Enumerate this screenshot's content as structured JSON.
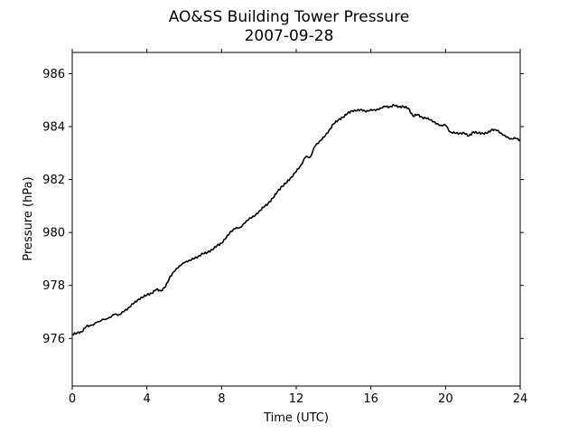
{
  "chart_data": {
    "type": "line",
    "title": "AO&SS Building Tower Pressure",
    "subtitle": "2007-09-28",
    "xlabel": "Time (UTC)",
    "ylabel": "Pressure (hPa)",
    "xlim": [
      0,
      24
    ],
    "ylim": [
      974.2,
      986.8
    ],
    "xticks": [
      0,
      4,
      8,
      12,
      16,
      20,
      24
    ],
    "xtick_labels": [
      "0",
      "4",
      "8",
      "12",
      "16",
      "20",
      "24"
    ],
    "yticks": [
      976,
      978,
      980,
      982,
      984,
      986
    ],
    "ytick_labels": [
      "976",
      "978",
      "980",
      "982",
      "984",
      "986"
    ],
    "grid": false,
    "line_color": "#000000",
    "series": [
      {
        "x": [
          0,
          0.25,
          0.5,
          0.75,
          1,
          1.5,
          2,
          2.25,
          2.5,
          2.75,
          3,
          3.25,
          3.5,
          3.75,
          4,
          4.25,
          4.5,
          4.75,
          5,
          5.25,
          5.5,
          5.75,
          6,
          6.25,
          6.5,
          6.75,
          7,
          7.25,
          7.5,
          7.75,
          8,
          8.25,
          8.5,
          8.75,
          9,
          9.25,
          9.5,
          9.75,
          10,
          10.25,
          10.5,
          10.75,
          11,
          11.25,
          11.5,
          11.75,
          12,
          12.25,
          12.5,
          12.75,
          13,
          13.25,
          13.5,
          13.75,
          14,
          14.25,
          14.5,
          14.75,
          15,
          15.25,
          15.5,
          15.75,
          16,
          16.25,
          16.5,
          16.75,
          17,
          17.25,
          17.5,
          17.75,
          18,
          18.25,
          18.5,
          18.75,
          19,
          19.25,
          19.5,
          19.75,
          20,
          20.25,
          20.5,
          20.75,
          21,
          21.25,
          21.5,
          21.75,
          22,
          22.25,
          22.5,
          22.75,
          23,
          23.25,
          23.5,
          23.75,
          24
        ],
        "values": [
          976.15,
          976.2,
          976.25,
          976.45,
          976.5,
          976.65,
          976.8,
          976.9,
          976.9,
          977.0,
          977.15,
          977.3,
          977.45,
          977.55,
          977.65,
          977.7,
          977.85,
          977.8,
          977.95,
          978.35,
          978.55,
          978.75,
          978.85,
          978.95,
          979.0,
          979.1,
          979.2,
          979.25,
          979.35,
          979.5,
          979.6,
          979.8,
          980.05,
          980.15,
          980.2,
          980.35,
          980.55,
          980.6,
          980.8,
          980.95,
          981.1,
          981.3,
          981.55,
          981.75,
          981.9,
          982.1,
          982.3,
          982.55,
          982.85,
          982.85,
          983.25,
          983.45,
          983.6,
          983.85,
          984.1,
          984.25,
          984.35,
          984.5,
          984.6,
          984.6,
          984.65,
          984.55,
          984.65,
          984.6,
          984.7,
          984.75,
          984.75,
          984.8,
          984.75,
          984.75,
          984.7,
          984.4,
          984.45,
          984.35,
          984.3,
          984.25,
          984.1,
          984.05,
          984.05,
          983.8,
          983.75,
          983.75,
          983.75,
          983.65,
          983.8,
          983.75,
          983.75,
          983.75,
          983.9,
          983.85,
          983.75,
          983.6,
          983.55,
          983.55,
          983.5
        ]
      }
    ]
  }
}
